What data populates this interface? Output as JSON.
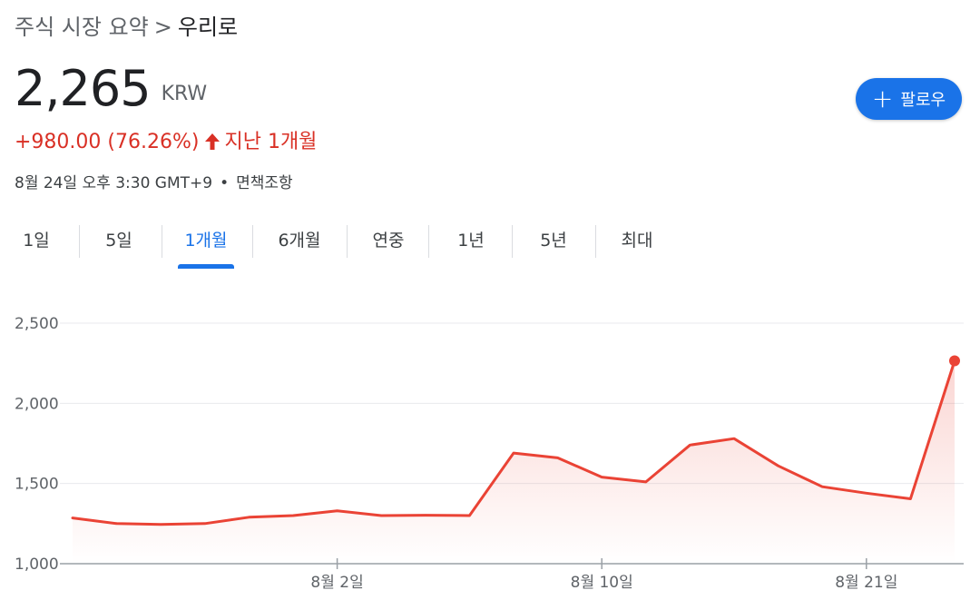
{
  "breadcrumb": {
    "parent": "주식 시장 요약",
    "separator": ">",
    "current": "우리로"
  },
  "quote": {
    "price": "2,265",
    "currency": "KRW",
    "change": "+980.00 (76.26%)",
    "period": "지난 1개월",
    "timestamp": "8월 24일 오후 3:30 GMT+9",
    "separator_dot": "•",
    "disclaimer": "면책조항",
    "up_color": "#d93025"
  },
  "follow_button": {
    "icon": "plus-icon",
    "label": "팔로우",
    "color": "#1a73e8"
  },
  "tabs": [
    {
      "label": "1일",
      "active": false
    },
    {
      "label": "5일",
      "active": false
    },
    {
      "label": "1개월",
      "active": true
    },
    {
      "label": "6개월",
      "active": false
    },
    {
      "label": "연중",
      "active": false
    },
    {
      "label": "1년",
      "active": false
    },
    {
      "label": "5년",
      "active": false
    },
    {
      "label": "최대",
      "active": false
    }
  ],
  "chart_data": {
    "type": "line",
    "series": [
      {
        "values": [
          1285,
          1250,
          1245,
          1250,
          1290,
          1300,
          1330,
          1300,
          1302,
          1300,
          1690,
          1660,
          1540,
          1510,
          1740,
          1780,
          1610,
          1480,
          1440,
          1405,
          2265
        ]
      }
    ],
    "x_tick_labels": [
      "8월 2일",
      "8월 10일",
      "8월 21일"
    ],
    "x_tick_index": [
      6,
      12,
      18
    ],
    "y_ticks": [
      1000,
      1500,
      2000,
      2500
    ],
    "y_tick_labels": [
      "1,000",
      "1,500",
      "2,000",
      "2,500"
    ],
    "ylim": [
      1000,
      2500
    ],
    "line_color": "#ea4335",
    "grid": true,
    "fill": "gradient"
  }
}
